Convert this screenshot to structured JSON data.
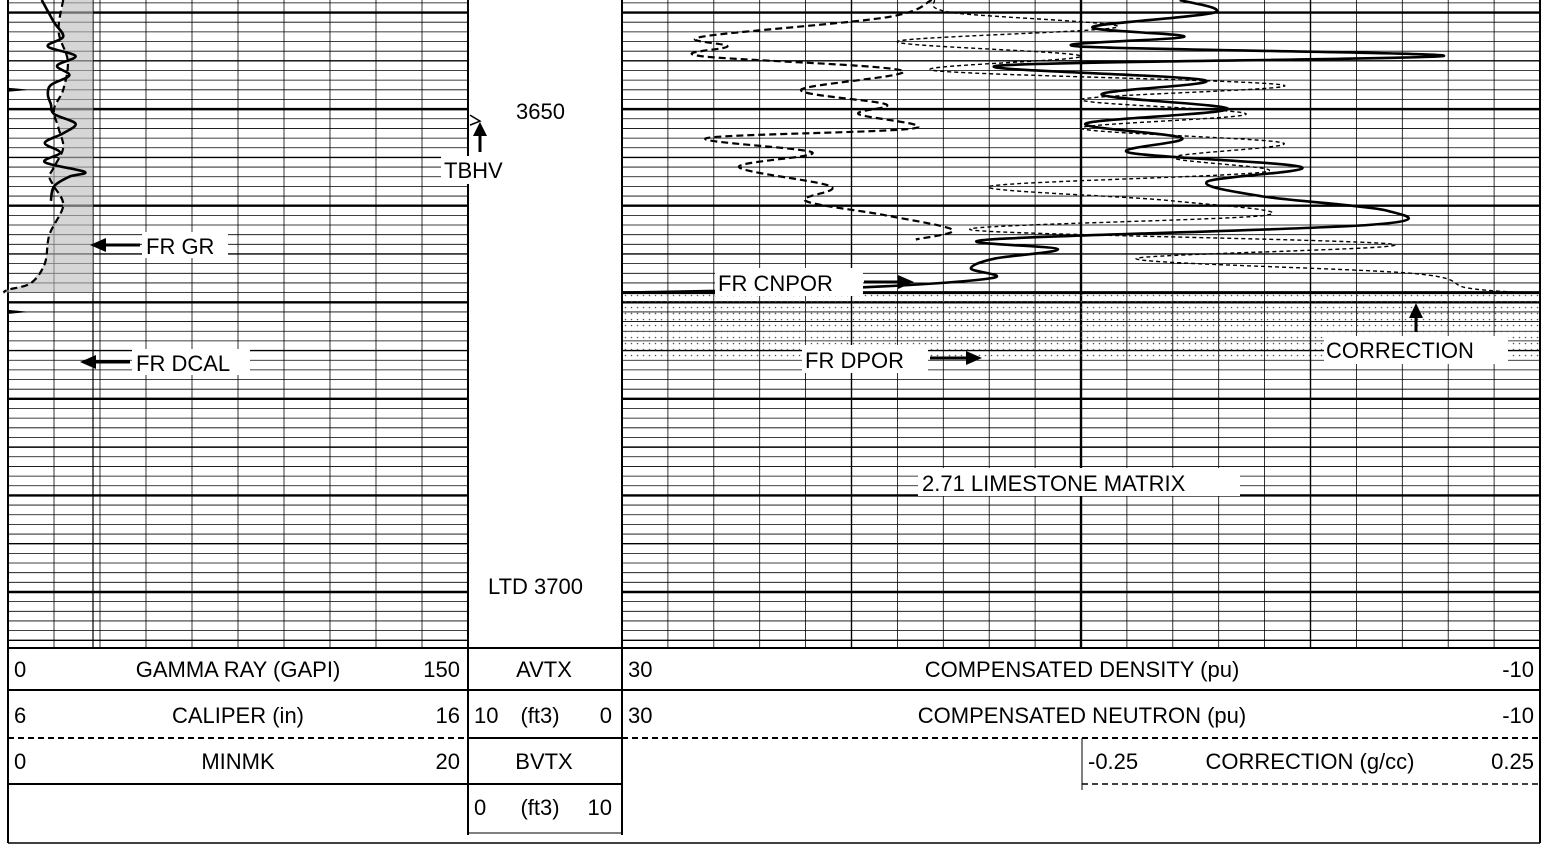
{
  "chart_data": {
    "type": "line",
    "depth_marks": {
      "d3650": "3650",
      "ltd": "LTD 3700"
    },
    "track1": {
      "gamma_ray": {
        "label": "GAMMA RAY (GAPI)",
        "min": "0",
        "max": "150",
        "range": [
          0,
          150
        ]
      },
      "caliper": {
        "label": "CALIPER (in)",
        "min": "6",
        "max": "16",
        "range": [
          6,
          16
        ]
      },
      "minmk": {
        "label": "MINMK",
        "min": "0",
        "max": "20",
        "range": [
          0,
          20
        ]
      },
      "annotations": {
        "gr": "FR GR",
        "dcal": "FR DCAL"
      }
    },
    "depth_track": {
      "avtx": {
        "label": "AVTX",
        "unit": "(ft3)",
        "min": "10",
        "max": "0"
      },
      "bvtx": {
        "label": "BVTX",
        "unit": "(ft3)",
        "min": "0",
        "max": "10"
      },
      "annotation": "TBHV"
    },
    "track2": {
      "density": {
        "label": "COMPENSATED DENSITY (pu)",
        "min": "30",
        "max": "-10",
        "range": [
          30,
          -10
        ]
      },
      "neutron": {
        "label": "COMPENSATED NEUTRON (pu)",
        "min": "30",
        "max": "-10",
        "range": [
          30,
          -10
        ]
      },
      "correction": {
        "label": "CORRECTION (g/cc)",
        "min": "-0.25",
        "max": "0.25",
        "range": [
          -0.25,
          0.25
        ]
      },
      "annotations": {
        "cnpor": "FR CNPOR",
        "dpor": "FR DPOR",
        "corr": "CORRECTION",
        "matrix": "2.71 LIMESTONE MATRIX"
      }
    },
    "depth_range": [
      3638.7,
      3705.8
    ],
    "series": [
      {
        "name": "FR GR",
        "axis": "gamma_ray",
        "style": "solid",
        "depth": [
          3638.7,
          3641,
          3642.5,
          3643.5,
          3644.5,
          3645.5,
          3646.5,
          3647.5,
          3648.5,
          3649.5,
          3650.5,
          3651.5,
          3652.5,
          3653.5,
          3654.5,
          3655.5,
          3656.5,
          3657,
          3658,
          3659.5
        ],
        "values": [
          11,
          15,
          18,
          13,
          22,
          16,
          20,
          14,
          13,
          14,
          15,
          22,
          18,
          12,
          17,
          12,
          25,
          20,
          15,
          14
        ]
      },
      {
        "name": "FR DCAL",
        "axis": "caliper",
        "style": "dashed",
        "depth": [
          3638.7,
          3642,
          3645,
          3648,
          3650,
          3652,
          3654,
          3656,
          3657,
          3658,
          3660,
          3663,
          3666,
          3668,
          3668.7,
          3669
        ],
        "values": [
          7.2,
          7.1,
          7.3,
          7.2,
          7.0,
          7.1,
          7.2,
          7.0,
          6.9,
          7.0,
          7.2,
          6.9,
          6.8,
          6.5,
          6.0,
          5.9
        ]
      },
      {
        "name": "FR DPOR",
        "axis": "density",
        "style": "solid",
        "depth": [
          3638.7,
          3640,
          3641.5,
          3642.5,
          3643.5,
          3644.5,
          3645.5,
          3647,
          3648.5,
          3650,
          3651.5,
          3653,
          3654.5,
          3656,
          3657.5,
          3659,
          3660.5,
          3662,
          3663.5,
          3664.5,
          3665.5,
          3666.5,
          3667.5,
          3668.5,
          3669
        ],
        "values": [
          5.7,
          4.2,
          9.5,
          5.5,
          10.1,
          -5.8,
          13.6,
          4.6,
          9.1,
          3.6,
          9.8,
          5.6,
          7.9,
          0.4,
          4.5,
          2.2,
          -3.3,
          -2.5,
          14.0,
          11.0,
          13.8,
          14.8,
          13.9,
          20,
          30
        ]
      },
      {
        "name": "FR CNPOR",
        "axis": "neutron",
        "style": "dashed",
        "depth": [
          3638.7,
          3640.5,
          3642.5,
          3643.5,
          3644.5,
          3646,
          3648,
          3649.5,
          3650.5,
          3652,
          3653,
          3654.5,
          3656,
          3658,
          3659.5,
          3661,
          3662.5,
          3663.5
        ],
        "values": [
          16.5,
          18.5,
          26.5,
          25.4,
          26.6,
          17.8,
          22.2,
          18.5,
          19.7,
          17.3,
          26.3,
          21.7,
          24.9,
          20.9,
          22.0,
          18.5,
          15.6,
          17.2
        ]
      },
      {
        "name": "CORRECTION",
        "axis": "correction",
        "style": "dotted",
        "depth": [
          3638.7,
          3640,
          3641.5,
          3643,
          3644.5,
          3646,
          3647.5,
          3649,
          3650.5,
          3652,
          3653.5,
          3655,
          3656.5,
          3658,
          3659.5,
          3661,
          3662.5,
          3664,
          3665.5,
          3667,
          3668.5,
          3669
        ],
        "values": [
          -0.08,
          -0.07,
          0.02,
          -0.1,
          0.0,
          -0.08,
          0.11,
          0.0,
          0.09,
          0.0,
          0.11,
          0.05,
          0.1,
          -0.05,
          0.05,
          0.1,
          -0.06,
          0.17,
          0.03,
          0.18,
          0.21,
          0.24
        ]
      }
    ],
    "grid": true
  }
}
